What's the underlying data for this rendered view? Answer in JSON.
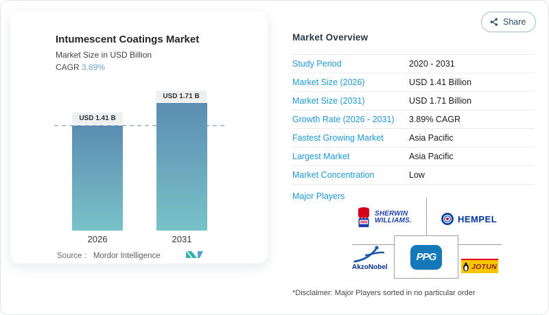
{
  "share": {
    "label": "Share"
  },
  "chart_card": {
    "title": "Intumescent Coatings Market",
    "subtitle": "Market Size in USD Billion",
    "cagr_label": "CAGR",
    "cagr_value": "3.89%",
    "source_label": "Source :",
    "source_value": "Mordor Intelligence"
  },
  "chart_data": {
    "type": "bar",
    "title": "Intumescent Coatings Market",
    "ylabel": "Market Size in USD Billion",
    "categories": [
      "2026",
      "2031"
    ],
    "values": [
      1.41,
      1.71
    ],
    "bar_labels": [
      "USD 1.41 B",
      "USD 1.71 B"
    ],
    "reference_line_value": 1.41,
    "cagr_percent": 3.89,
    "bar_gradient": [
      "#5b8db2",
      "#79c2c8"
    ],
    "legend": "none",
    "grid": "off"
  },
  "overview": {
    "title": "Market Overview",
    "rows": [
      {
        "label": "Study Period",
        "value": "2020 - 2031"
      },
      {
        "label": "Market Size (2026)",
        "value": "USD 1.41 Billion"
      },
      {
        "label": "Market Size (2031)",
        "value": "USD 1.71 Billion"
      },
      {
        "label": "Growth Rate (2026 - 2031)",
        "value": "3.89% CAGR"
      },
      {
        "label": "Fastest Growing Market",
        "value": "Asia Pacific"
      },
      {
        "label": "Largest Market",
        "value": "Asia Pacific"
      },
      {
        "label": "Market Concentration",
        "value": "Low"
      }
    ],
    "major_players_label": "Major Players",
    "major_players": {
      "sherwin_line1": "SHERWIN",
      "sherwin_line2": "WILLIAMS.",
      "hempel": "HEMPEL",
      "akzonobel": "AkzoNobel",
      "ppg": "PPG",
      "jotun": "JOTUN"
    },
    "disclaimer": "*Disclaimer: Major Players sorted in no particular order"
  },
  "colors": {
    "accent_blue": "#1f97d3",
    "cagr_value_blue": "#6fa3cc",
    "share_navy": "#2c4d67",
    "bar_top": "#5b8db2",
    "bar_bottom": "#79c2c8",
    "sherwin_red": "#d6001c",
    "sherwin_blue": "#1b3faa",
    "hempel_blue": "#0032a0",
    "hempel_red": "#e30613",
    "akzonobel_blue": "#1d5aa8",
    "ppg_blue": "#1478b9",
    "jotun_yellow": "#f7c600",
    "jotun_red": "#e2001a"
  }
}
